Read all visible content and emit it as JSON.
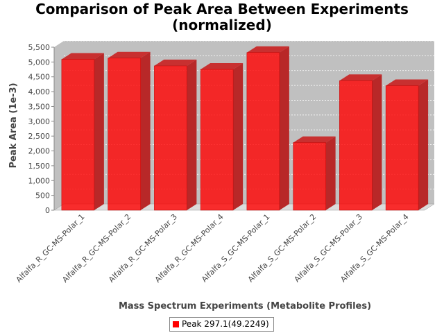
{
  "chart_data": {
    "type": "bar",
    "title_lines": [
      "Comparison of Peak Area Between Experiments",
      "(normalized)"
    ],
    "xlabel": "Mass Spectrum Experiments (Metabolite Profiles)",
    "ylabel": "Peak Area (1e-3)",
    "ylim": [
      0,
      5500
    ],
    "yticks": [
      0,
      500,
      1000,
      1500,
      2000,
      2500,
      3000,
      3500,
      4000,
      4500,
      5000,
      5500
    ],
    "ytick_labels": [
      "0",
      "500",
      "1,000",
      "1,500",
      "2,000",
      "2,500",
      "3,000",
      "3,500",
      "4,000",
      "4,500",
      "5,000",
      "5,500"
    ],
    "categories": [
      "Alfalfa_R_GC-MS-Polar_1",
      "Alfalfa_R_GC-MS-Polar_2",
      "Alfalfa_R_GC-MS-Polar_3",
      "Alfalfa_R_GC-MS-Polar_4",
      "Alfalfa_S_GC-MS-Polar_1",
      "Alfalfa_S_GC-MS-Polar_2",
      "Alfalfa_S_GC-MS-Polar_3",
      "Alfalfa_S_GC-MS-Polar_4"
    ],
    "series": [
      {
        "name": "Peak 297.1(49.2249)",
        "values": [
          5090,
          5130,
          4870,
          4750,
          5320,
          2280,
          4370,
          4200
        ]
      }
    ],
    "grid": true,
    "legend_position": "bottom",
    "colors": {
      "bar": "#ff0000",
      "plot_background": "#c0c0c0"
    }
  }
}
